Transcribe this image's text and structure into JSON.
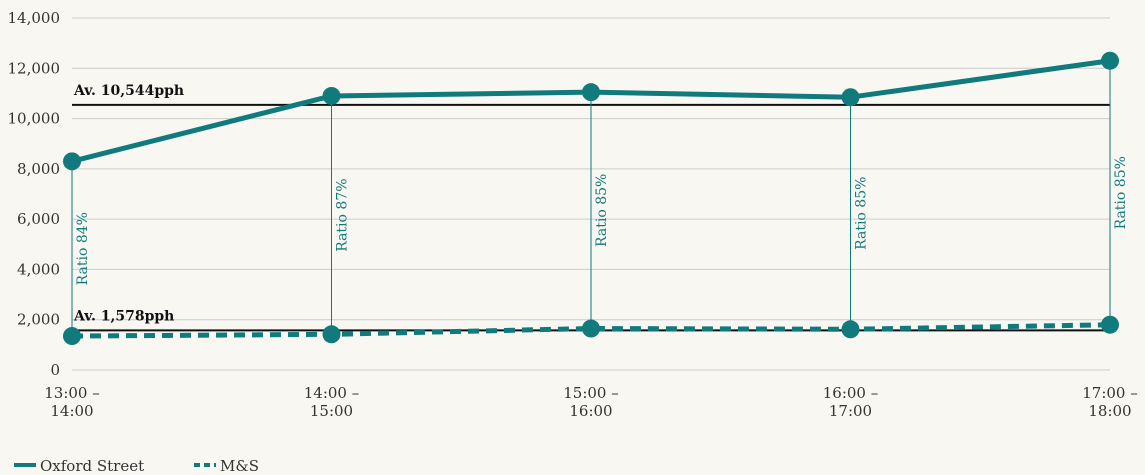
{
  "chart_data": {
    "type": "line",
    "categories": [
      "13:00 – 14:00",
      "14:00 – 15:00",
      "15:00 – 16:00",
      "16:00 – 17:00",
      "17:00 – 18:00"
    ],
    "category_lines": [
      [
        "13:00 –",
        "14:00"
      ],
      [
        "14:00 –",
        "15:00"
      ],
      [
        "15:00 –",
        "16:00"
      ],
      [
        "16:00 –",
        "17:00"
      ],
      [
        "17:00 –",
        "18:00"
      ]
    ],
    "series": [
      {
        "name": "Oxford Street",
        "values": [
          8300,
          10900,
          11050,
          10850,
          12300
        ],
        "color": "#117a7d",
        "style": "solid"
      },
      {
        "name": "M&S",
        "values": [
          1350,
          1420,
          1650,
          1620,
          1800
        ],
        "color": "#117a7d",
        "style": "dashed"
      }
    ],
    "ylim": [
      0,
      14000
    ],
    "yticks": [
      0,
      2000,
      4000,
      6000,
      8000,
      10000,
      12000,
      14000
    ],
    "ytick_labels": [
      "0",
      "2,000",
      "4,000",
      "6,000",
      "8,000",
      "10,000",
      "12,000",
      "14,000"
    ],
    "reference_lines": [
      {
        "value": 10544,
        "label": "Av. 10,544pph"
      },
      {
        "value": 1578,
        "label": "Av. 1,578pph"
      }
    ],
    "ratio_labels": [
      "Ratio 84%",
      "Ratio 87%",
      "Ratio 85%",
      "Ratio 85%",
      "Ratio 85%"
    ],
    "grid": true,
    "legend_position": "bottom-left",
    "line_color": "#117a7d",
    "ref_line_color": "#111111",
    "grid_color": "#cccccc"
  }
}
